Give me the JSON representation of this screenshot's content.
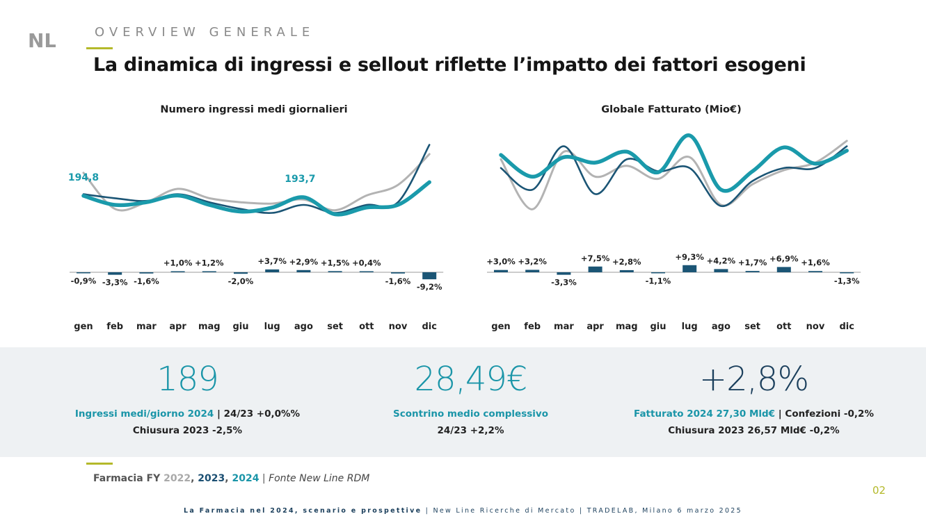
{
  "header": {
    "logo_text": "NL",
    "section": "OVERVIEW GENERALE",
    "title": "La dinamica di ingressi e sellout riflette l’impatto dei fattori esogeni"
  },
  "colors": {
    "y2022": "#b3b3b3",
    "y2023": "#1b5575",
    "y2024": "#1a9aab",
    "bar": "#1b5575",
    "accent": "#b4b92a"
  },
  "chart_data": [
    {
      "type": "line",
      "title": "Numero ingressi medi giornalieri",
      "categories": [
        "gen",
        "feb",
        "mar",
        "apr",
        "mag",
        "giu",
        "lug",
        "ago",
        "set",
        "ott",
        "nov",
        "dic"
      ],
      "ylim": [
        175,
        240
      ],
      "series": [
        {
          "key": "2022",
          "values": [
            212,
            185,
            190,
            200,
            193,
            190,
            189,
            192,
            184,
            195,
            203,
            226
          ]
        },
        {
          "key": "2023",
          "values": [
            196,
            193,
            191,
            196,
            190,
            185,
            182,
            188,
            182,
            188,
            190,
            233
          ]
        },
        {
          "key": "2024",
          "values": [
            194.8,
            188,
            190,
            195,
            188,
            183,
            186,
            193.7,
            181,
            186,
            188,
            205
          ]
        }
      ],
      "data_labels": [
        {
          "index": 0,
          "text": "194,8"
        },
        {
          "index": 7,
          "text": "193,7"
        }
      ],
      "variations": [
        -0.9,
        -3.3,
        -1.6,
        1.0,
        1.2,
        -2.0,
        3.7,
        2.9,
        1.5,
        0.4,
        -1.6,
        -9.2
      ],
      "variation_labels": [
        "-0,9%",
        "-3,3%",
        "-1,6%",
        "+1,0%",
        "+1,2%",
        "-2,0%",
        "+3,7%",
        "+2,9%",
        "+1,5%",
        "+0,4%",
        "-1,6%",
        "-9,2%"
      ]
    },
    {
      "type": "line",
      "title": "Globale Fatturato (Mio€)",
      "categories": [
        "gen",
        "feb",
        "mar",
        "apr",
        "mag",
        "giu",
        "lug",
        "ago",
        "set",
        "ott",
        "nov",
        "dic"
      ],
      "ylim": [
        1.8,
        2.6
      ],
      "series": [
        {
          "key": "2022",
          "values": [
            2.38,
            1.92,
            2.45,
            2.22,
            2.32,
            2.2,
            2.4,
            1.96,
            2.15,
            2.28,
            2.35,
            2.55
          ]
        },
        {
          "key": "2023",
          "values": [
            2.3,
            2.1,
            2.5,
            2.06,
            2.38,
            2.27,
            2.3,
            1.95,
            2.18,
            2.3,
            2.3,
            2.5
          ]
        },
        {
          "key": "2024",
          "values": [
            2.42,
            2.22,
            2.4,
            2.35,
            2.45,
            2.26,
            2.6,
            2.1,
            2.27,
            2.49,
            2.34,
            2.46
          ]
        }
      ],
      "variations": [
        3.0,
        3.2,
        -3.3,
        7.5,
        2.8,
        -1.1,
        9.3,
        4.2,
        1.7,
        6.9,
        1.6,
        -1.3
      ],
      "variation_labels": [
        "+3,0%",
        "+3,2%",
        "-3,3%",
        "+7,5%",
        "+2,8%",
        "-1,1%",
        "+9,3%",
        "+4,2%",
        "+1,7%",
        "+6,9%",
        "+1,6%",
        "-1,3%"
      ]
    }
  ],
  "kpis": [
    {
      "value": "189",
      "line1_highlight": "Ingressi medi/giorno 2024",
      "line1_rest": " | 24/23 +0,0%%",
      "line2": "Chiusura 2023 -2,5%"
    },
    {
      "value": "28,49€",
      "line1_highlight": "Scontrino medio complessivo",
      "line1_rest": "",
      "line2": "24/23 +2,2%"
    },
    {
      "value": "+2,8%",
      "line1_highlight": "Fatturato 2024 27,30 Mld€",
      "line1_rest": " | Confezioni -0,2%",
      "line2": "Chiusura 2023 26,57 Mld€ -0,2%"
    }
  ],
  "source": {
    "prefix": "Farmacia FY ",
    "y2022": "2022",
    "sep1": ", ",
    "y2023": "2023",
    "sep2": ", ",
    "y2024": "2024",
    "sep3": " | ",
    "note": "Fonte New Line RDM"
  },
  "page_number": "02",
  "footer": {
    "bold": "La Farmacia nel 2024, scenario e prospettive",
    "rest": " | New Line Ricerche di Mercato | TRADELAB, Milano 6 marzo 2025"
  }
}
